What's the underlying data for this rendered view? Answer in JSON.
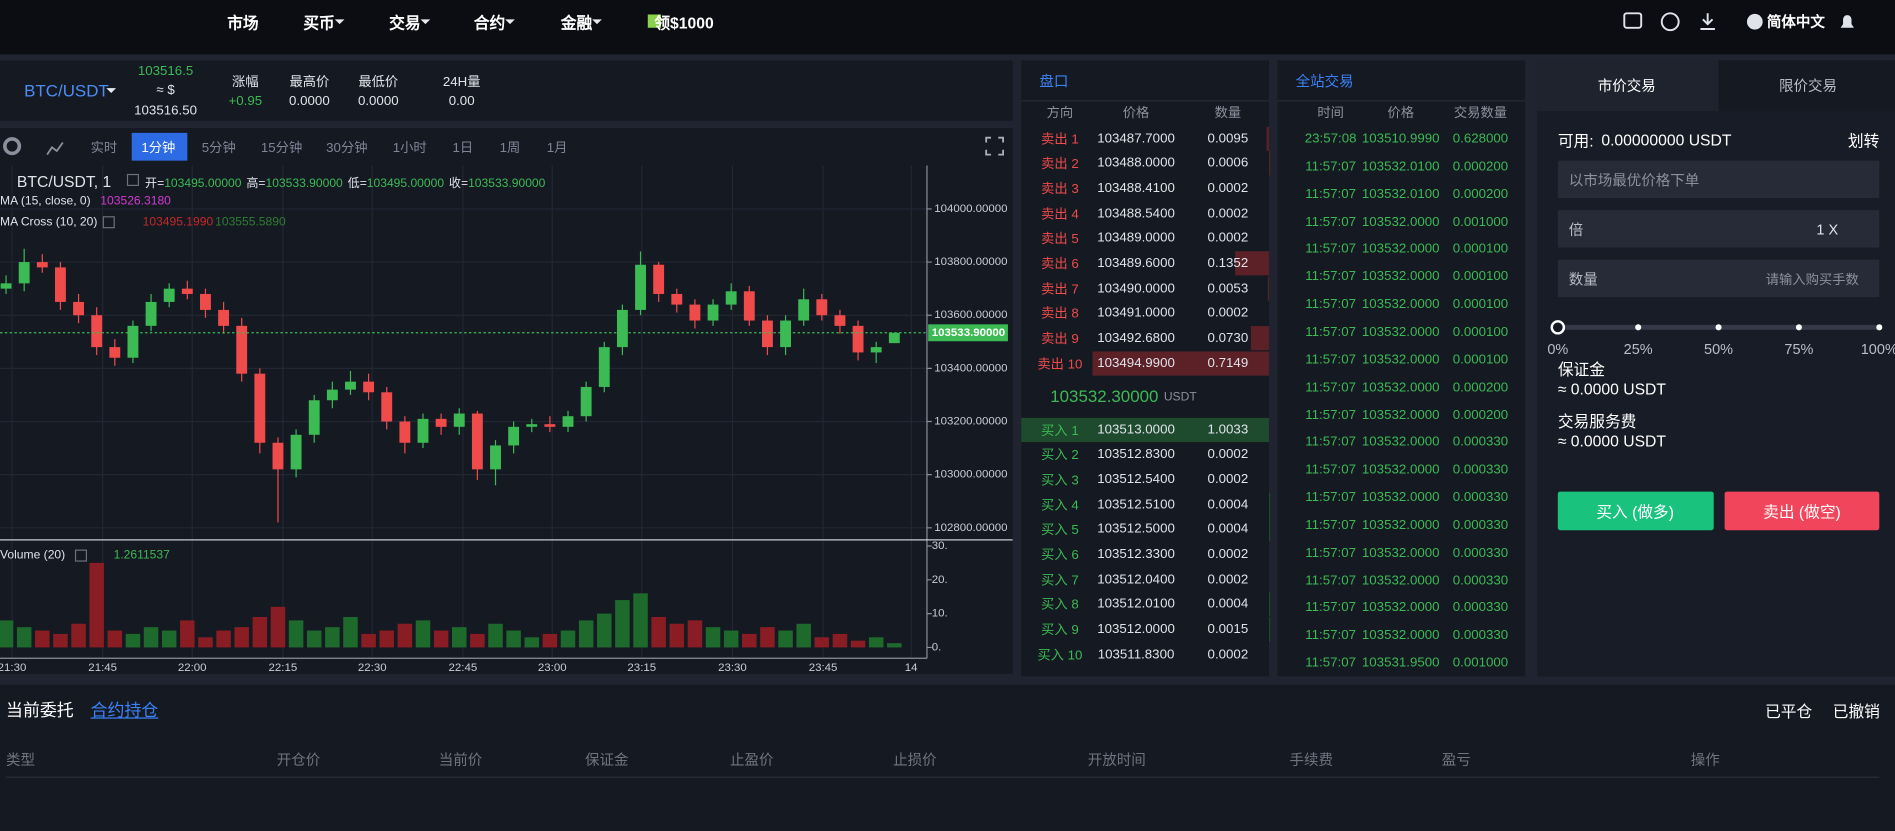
{
  "nav": {
    "items": [
      "市场",
      "买币",
      "交易",
      "合约",
      "金融",
      "领$1000"
    ],
    "language": "简体中文"
  },
  "ticker": {
    "pair": "BTC/USDT",
    "price": "103516.5",
    "approx": "≈ $",
    "price_usd": "103516.50",
    "stats": [
      {
        "label": "涨幅",
        "value": "+0.95"
      },
      {
        "label": "最高价",
        "value": "0.0000"
      },
      {
        "label": "最低价",
        "value": "0.0000"
      },
      {
        "label": "24H量",
        "value": "0.00"
      }
    ]
  },
  "chart_panel": {
    "intervals": [
      "实时",
      "1分钟",
      "5分钟",
      "15分钟",
      "30分钟",
      "1小时",
      "1日",
      "1周",
      "1月"
    ],
    "active_interval": 1,
    "ohlc": [
      {
        "label": "开=",
        "value": "103495.00000"
      },
      {
        "label": "高=",
        "value": "103533.90000"
      },
      {
        "label": "低=",
        "value": "103495.00000"
      },
      {
        "label": "收=",
        "value": "103533.90000"
      }
    ],
    "ma": {
      "label": "MA (15, close, 0)",
      "value": "103526.3180"
    },
    "ma_cross": {
      "label": "MA Cross (10, 20)",
      "fast": "103495.1990",
      "slow": "103555.5890"
    },
    "volume": {
      "label": "Volume (20)",
      "value": "1.2611537"
    }
  },
  "chart_data": {
    "type": "candlestick",
    "title": "BTC/USDT, 1",
    "open": [
      103700,
      103720,
      103800,
      103780,
      103650,
      103600,
      103480,
      103440,
      103560,
      103650,
      103700,
      103680,
      103620,
      103560,
      103380,
      103120,
      103020,
      103150,
      103280,
      103320,
      103350,
      103310,
      103200,
      103120,
      103210,
      103180,
      103230,
      103020,
      103110,
      103180,
      103190,
      103180,
      103220,
      103330,
      103480,
      103620,
      103790,
      103680,
      103640,
      103580,
      103640,
      103690,
      103580,
      103480,
      103580,
      103660,
      103600,
      103560,
      103460,
      103495
    ],
    "high": [
      103750,
      103850,
      103830,
      103800,
      103680,
      103630,
      103510,
      103580,
      103680,
      103720,
      103730,
      103700,
      103650,
      103590,
      103400,
      103140,
      103170,
      103300,
      103350,
      103390,
      103380,
      103330,
      103220,
      103230,
      103230,
      103250,
      103240,
      103130,
      103200,
      103210,
      103220,
      103240,
      103350,
      103500,
      103640,
      103840,
      103800,
      103700,
      103660,
      103660,
      103720,
      103710,
      103600,
      103600,
      103700,
      103680,
      103620,
      103580,
      103500,
      103533.9
    ],
    "low": [
      103680,
      103690,
      103760,
      103620,
      103570,
      103450,
      103410,
      103420,
      103540,
      103630,
      103660,
      103590,
      103530,
      103350,
      103080,
      102820,
      102990,
      103120,
      103250,
      103300,
      103280,
      103170,
      103080,
      103100,
      103150,
      103150,
      102980,
      102960,
      103080,
      103160,
      103160,
      103160,
      103200,
      103310,
      103450,
      103600,
      103650,
      103610,
      103550,
      103560,
      103620,
      103560,
      103450,
      103450,
      103560,
      103580,
      103530,
      103430,
      103420,
      103495
    ],
    "close": [
      103720,
      103800,
      103780,
      103650,
      103600,
      103480,
      103440,
      103560,
      103650,
      103700,
      103680,
      103620,
      103560,
      103380,
      103120,
      103020,
      103150,
      103280,
      103320,
      103350,
      103310,
      103200,
      103120,
      103210,
      103180,
      103230,
      103020,
      103110,
      103180,
      103190,
      103180,
      103220,
      103330,
      103480,
      103620,
      103790,
      103680,
      103640,
      103580,
      103640,
      103690,
      103580,
      103480,
      103580,
      103660,
      103600,
      103560,
      103460,
      103480,
      103533.9
    ],
    "volume": [
      8,
      6,
      5,
      4,
      7,
      25,
      5,
      4,
      6,
      5,
      8,
      3,
      5,
      6,
      9,
      12,
      8,
      5,
      6,
      9,
      4,
      5,
      7,
      8,
      5,
      6,
      4,
      7,
      5,
      3,
      4,
      5,
      8,
      10,
      14,
      16,
      9,
      7,
      8,
      6,
      5,
      4,
      6,
      5,
      7,
      3,
      4,
      2,
      3,
      1.2611537
    ],
    "colors": {
      "up": "#3cba54",
      "down": "#f04b4b",
      "volume_up": "#1e6a2c",
      "volume_down": "#8a1d24"
    },
    "xlim": [
      -0.3333,
      50.8
    ],
    "xticks": [
      {
        "value": 0.33,
        "label": "21:30"
      },
      {
        "value": 5.33,
        "label": "21:45"
      },
      {
        "value": 10.27,
        "label": "22:00"
      },
      {
        "value": 15.27,
        "label": "22:15"
      },
      {
        "value": 20.2,
        "label": "22:30"
      },
      {
        "value": 25.2,
        "label": "22:45"
      },
      {
        "value": 30.13,
        "label": "23:00"
      },
      {
        "value": 35.07,
        "label": "23:15"
      },
      {
        "value": 40.07,
        "label": "23:30"
      },
      {
        "value": 45.07,
        "label": "23:45"
      },
      {
        "value": 49.93,
        "label": "14"
      }
    ],
    "ylim": [
      102754.5,
      104163.6
    ],
    "yticks": [
      {
        "value": 104000,
        "label": "104000.00000"
      },
      {
        "value": 103800,
        "label": "103800.00000"
      },
      {
        "value": 103600,
        "label": "103600.00000"
      },
      {
        "value": 103400,
        "label": "103400.00000"
      },
      {
        "value": 103200,
        "label": "103200.00000"
      },
      {
        "value": 103000,
        "label": "103000.00000"
      },
      {
        "value": 102800,
        "label": "102800.00000"
      }
    ],
    "last_price": {
      "value": 103533.9,
      "label": "103533.90000"
    },
    "volume_ylim": [
      -3.2,
      31.8
    ],
    "volume_ticks": [
      {
        "value": 30,
        "label": "30."
      },
      {
        "value": 20,
        "label": "20."
      },
      {
        "value": 10,
        "label": "10."
      },
      {
        "value": 0,
        "label": "0."
      }
    ],
    "grid": true
  },
  "order_book": {
    "title": "盘口",
    "headers": [
      "方向",
      "价格",
      "数量"
    ],
    "asks": [
      {
        "side": "卖出 1",
        "price": "103487.7000",
        "qty": 0.0095
      },
      {
        "side": "卖出 2",
        "price": "103488.0000",
        "qty": 0.0006
      },
      {
        "side": "卖出 3",
        "price": "103488.4100",
        "qty": 0.0002
      },
      {
        "side": "卖出 4",
        "price": "103488.5400",
        "qty": 0.0002
      },
      {
        "side": "卖出 5",
        "price": "103489.0000",
        "qty": 0.0002
      },
      {
        "side": "卖出 6",
        "price": "103489.6000",
        "qty": 0.1352
      },
      {
        "side": "卖出 7",
        "price": "103490.0000",
        "qty": 0.0053
      },
      {
        "side": "卖出 8",
        "price": "103491.0000",
        "qty": 0.0002
      },
      {
        "side": "卖出 9",
        "price": "103492.6800",
        "qty": {
          "value": 0.073,
          "label": "0.0730"
        }
      },
      {
        "side": "卖出 10",
        "price": "103494.9900",
        "qty": 0.7149
      }
    ],
    "mid_price": "103532.30000",
    "mid_unit": "USDT",
    "bids": [
      {
        "side": "买入 1",
        "price": "103513.0000",
        "qty": 1.0033
      },
      {
        "side": "买入 2",
        "price": "103512.8300",
        "qty": 0.0002
      },
      {
        "side": "买入 3",
        "price": "103512.5400",
        "qty": 0.0002
      },
      {
        "side": "买入 4",
        "price": "103512.5100",
        "qty": 0.0004
      },
      {
        "side": "买入 5",
        "price": "103512.5000",
        "qty": 0.0004
      },
      {
        "side": "买入 6",
        "price": "103512.3300",
        "qty": 0.0002
      },
      {
        "side": "买入 7",
        "price": "103512.0400",
        "qty": 0.0002
      },
      {
        "side": "买入 8",
        "price": "103512.0100",
        "qty": 0.0004
      },
      {
        "side": "买入 9",
        "price": "103512.0000",
        "qty": 0.0015
      },
      {
        "side": "买入 10",
        "price": "103511.8300",
        "qty": 0.0002
      }
    ]
  },
  "trades": {
    "title": "全站交易",
    "headers": [
      "时间",
      "价格",
      "交易数量"
    ],
    "rows": [
      [
        "23:57:08",
        "103510.9990",
        "0.628000"
      ],
      [
        "11:57:07",
        "103532.0100",
        "0.000200"
      ],
      [
        "11:57:07",
        "103532.0100",
        "0.000200"
      ],
      [
        "11:57:07",
        "103532.0000",
        "0.001000"
      ],
      [
        "11:57:07",
        "103532.0000",
        "0.000100"
      ],
      [
        "11:57:07",
        "103532.0000",
        "0.000100"
      ],
      [
        "11:57:07",
        "103532.0000",
        "0.000100"
      ],
      [
        "11:57:07",
        "103532.0000",
        "0.000100"
      ],
      [
        "11:57:07",
        "103532.0000",
        "0.000100"
      ],
      [
        "11:57:07",
        "103532.0000",
        "0.000200"
      ],
      [
        "11:57:07",
        "103532.0000",
        "0.000200"
      ],
      [
        "11:57:07",
        "103532.0000",
        "0.000330"
      ],
      [
        "11:57:07",
        "103532.0000",
        "0.000330"
      ],
      [
        "11:57:07",
        "103532.0000",
        "0.000330"
      ],
      [
        "11:57:07",
        "103532.0000",
        "0.000330"
      ],
      [
        "11:57:07",
        "103532.0000",
        "0.000330"
      ],
      [
        "11:57:07",
        "103532.0000",
        "0.000330"
      ],
      [
        "11:57:07",
        "103532.0000",
        "0.000330"
      ],
      [
        "11:57:07",
        "103532.0000",
        "0.000330"
      ],
      [
        "11:57:07",
        "103531.9500",
        "0.001000"
      ]
    ]
  },
  "order_form": {
    "tabs": [
      "市价交易",
      "限价交易"
    ],
    "available_label": "可用:",
    "available": "0.00000000 USDT",
    "transfer": "划转",
    "price_placeholder": "以市场最优价格下单",
    "leverage_label": "倍",
    "leverage": "1 X",
    "qty_label": "数量",
    "qty_placeholder": "请输入购买手数",
    "slider": [
      {
        "value": 0,
        "label": "0%"
      },
      {
        "value": 25,
        "label": "25%"
      },
      {
        "value": 50,
        "label": "50%"
      },
      {
        "value": 75,
        "label": "75%"
      },
      {
        "value": 100,
        "label": "100%"
      }
    ],
    "margin_label": "保证金",
    "margin": "≈ 0.0000 USDT",
    "fee_label": "交易服务费",
    "fee": "≈ 0.0000 USDT",
    "buy": "买入 (做多)",
    "sell": "卖出 (做空)"
  },
  "positions": {
    "tabs": [
      "当前委托",
      "合约持仓"
    ],
    "active_tab": 1,
    "filters": [
      "已平仓",
      "已撤销"
    ],
    "columns": [
      "类型",
      "开仓价",
      "当前价",
      "保证金",
      "止盈价",
      "止损价",
      "开放时间",
      "手续费",
      "盈亏",
      "操作"
    ]
  }
}
